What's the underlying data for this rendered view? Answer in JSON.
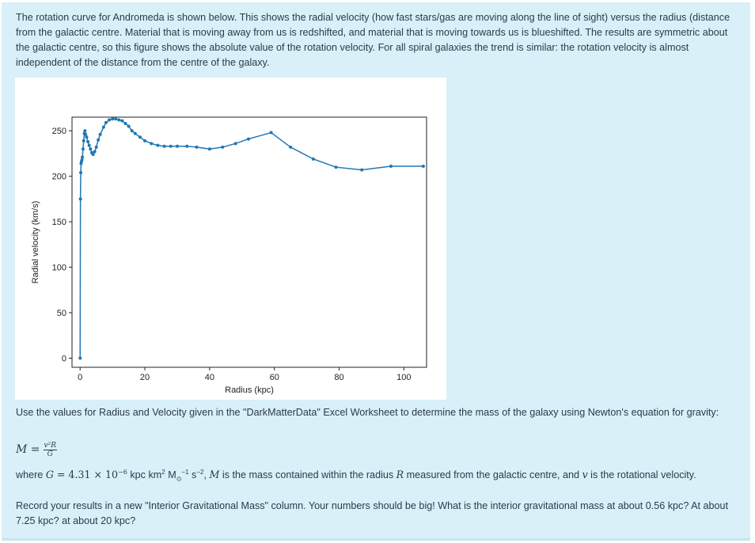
{
  "intro": {
    "text": "The rotation curve for Andromeda is shown below. This shows the radial velocity (how fast stars/gas are moving along the line of sight) versus the radius (distance from the galactic centre.  Material that is moving away from us is redshifted, and material that is moving towards us is blueshifted. The results are symmetric about the galactic centre, so this figure shows the absolute value of the rotation velocity. For all spiral galaxies the trend is similar: the rotation velocity is almost independent of the distance from the centre of the galaxy."
  },
  "chart_data": {
    "type": "line",
    "title": "",
    "xlabel": "Radius (kpc)",
    "ylabel": "Radial velocity (km/s)",
    "xlim": [
      -2.5,
      107
    ],
    "ylim": [
      -10,
      265
    ],
    "xticks": [
      0,
      20,
      40,
      60,
      80,
      100
    ],
    "yticks": [
      0,
      50,
      100,
      150,
      200,
      250
    ],
    "grid": false,
    "series_color": "#1f77b4",
    "x": [
      0,
      0.1,
      0.2,
      0.3,
      0.4,
      0.56,
      0.7,
      0.9,
      1.1,
      1.3,
      1.5,
      1.7,
      2.0,
      2.4,
      2.8,
      3.2,
      3.6,
      4.0,
      4.5,
      5.0,
      5.6,
      6.2,
      7.25,
      8.0,
      9.0,
      10.0,
      11.0,
      12.0,
      13.0,
      14.0,
      15.0,
      16.0,
      17.0,
      18.5,
      20.0,
      22.0,
      24.0,
      26.0,
      28.0,
      30.0,
      33.0,
      36.0,
      40.0,
      44.0,
      48.0,
      52.0,
      59.0,
      65.0,
      72.0,
      79.0,
      87.0,
      96.0,
      106.0
    ],
    "y": [
      0,
      175,
      204,
      214,
      216,
      218,
      221,
      230,
      239,
      247,
      250,
      246,
      243,
      238,
      234,
      230,
      226,
      224,
      227,
      232,
      240,
      246,
      254,
      259,
      262,
      263,
      263,
      262,
      261,
      258,
      255,
      250,
      247,
      243,
      239,
      236,
      234,
      233,
      233,
      233,
      233,
      232,
      230,
      232,
      236,
      241,
      248,
      232,
      219,
      210,
      207,
      211,
      211
    ]
  },
  "instructions": {
    "prompt": "Use the values for Radius and Velocity given in the \"DarkMatterData\" Excel Worksheet to determine the mass of the galaxy using Newton's equation for gravity:",
    "eq_lhs": "M =",
    "eq_num": "v²R",
    "eq_den": "G",
    "where_1": "where ",
    "G_sym": "G",
    "G_val": " = 4.31 × 10",
    "G_exp": "−6",
    "G_units_a": " kpc km",
    "sq": "2",
    "G_units_b": " M",
    "sun_sub": "⊙",
    "neg1": "−1",
    "s_unit": " s",
    "neg2": "−2",
    "comma": ", ",
    "M_sym": "M",
    "where_2": " is the mass contained within the radius ",
    "R_sym": "R",
    "where_3": " measured from the galactic centre, and ",
    "v_sym": "v",
    "where_4": " is the rotational velocity.",
    "record": "Record your results in a new \"Interior Gravitational Mass\" column. Your numbers should be big! What is the interior gravitational mass at about 0.56 kpc? At about 7.25 kpc? at about 20 kpc?"
  }
}
